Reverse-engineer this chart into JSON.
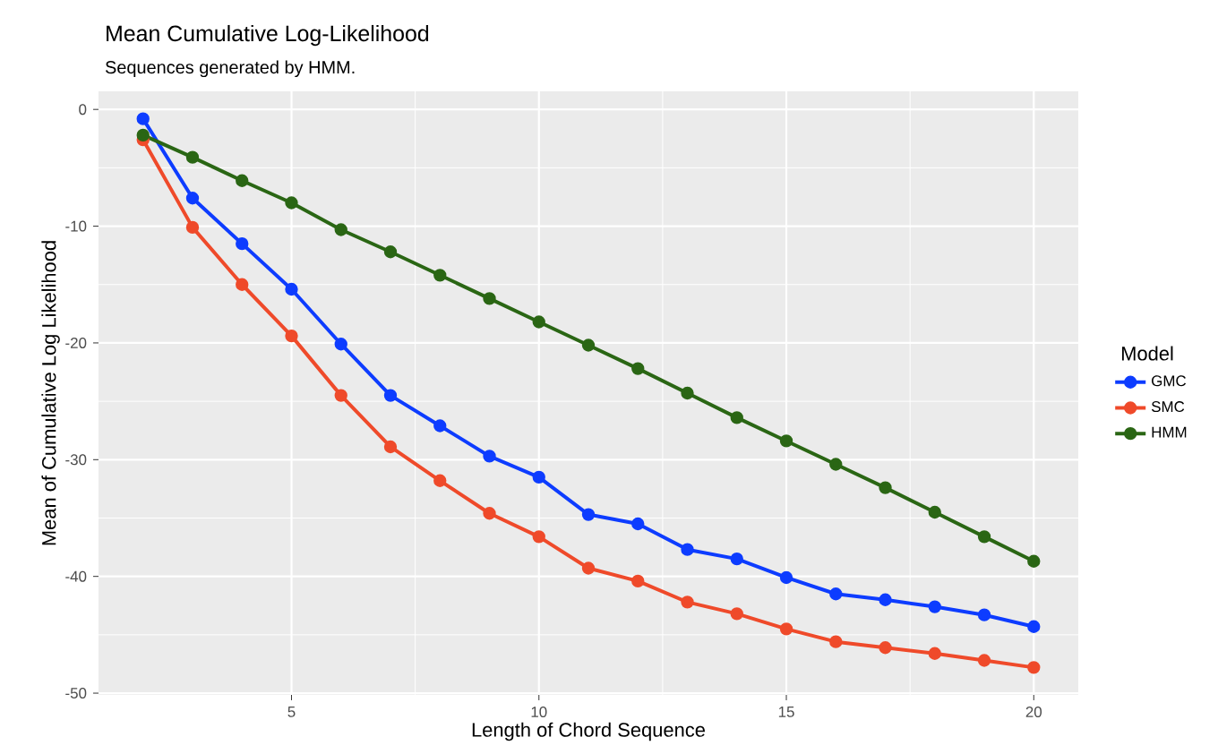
{
  "chart_data": {
    "type": "line",
    "title": "Mean Cumulative Log-Likelihood",
    "subtitle": "Sequences generated by HMM.",
    "xlabel": "Length of Chord Sequence",
    "ylabel": "Mean of Cumulative Log Likelihood",
    "legend_title": "Model",
    "x": [
      2,
      3,
      4,
      5,
      6,
      7,
      8,
      9,
      10,
      11,
      12,
      13,
      14,
      15,
      16,
      17,
      18,
      19,
      20
    ],
    "series": [
      {
        "name": "GMC",
        "color": "#0d3cff",
        "values": [
          -0.8,
          -7.6,
          -11.5,
          -15.4,
          -20.1,
          -24.5,
          -27.1,
          -29.7,
          -31.5,
          -34.7,
          -35.5,
          -37.7,
          -38.5,
          -40.1,
          -41.5,
          -42.0,
          -42.6,
          -43.3,
          -44.3
        ]
      },
      {
        "name": "SMC",
        "color": "#ef4a2a",
        "values": [
          -2.6,
          -10.1,
          -15.0,
          -19.4,
          -24.5,
          -28.9,
          -31.8,
          -34.6,
          -36.6,
          -39.3,
          -40.4,
          -42.2,
          -43.2,
          -44.5,
          -45.6,
          -46.1,
          -46.6,
          -47.2,
          -47.8
        ]
      },
      {
        "name": "HMM",
        "color": "#2a6614",
        "values": [
          -2.2,
          -4.1,
          -6.1,
          -8.0,
          -10.3,
          -12.2,
          -14.2,
          -16.2,
          -18.2,
          -20.2,
          -22.2,
          -24.3,
          -26.4,
          -28.4,
          -30.4,
          -32.4,
          -34.5,
          -36.6,
          -38.7
        ]
      }
    ],
    "xlim": [
      1.1,
      20.9
    ],
    "ylim": [
      -50.15,
      1.55
    ],
    "xticks": [
      5,
      10,
      15,
      20
    ],
    "yticks": [
      -50,
      -40,
      -30,
      -20,
      -10,
      0
    ],
    "grid": true,
    "legend": "right",
    "marker": "circle",
    "line_style": "solid"
  }
}
